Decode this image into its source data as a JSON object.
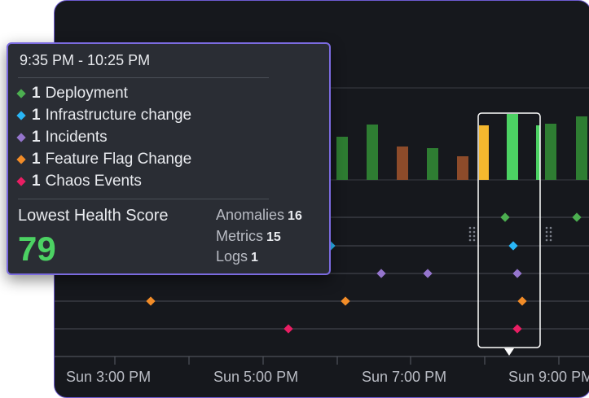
{
  "tooltip": {
    "time_range": "9:35 PM - 10:25 PM",
    "events": [
      {
        "count": "1",
        "label": "Deployment",
        "color": "#4caf50"
      },
      {
        "count": "1",
        "label": "Infrastructure change",
        "color": "#29b6f6"
      },
      {
        "count": "1",
        "label": "Incidents",
        "color": "#9575cd"
      },
      {
        "count": "1",
        "label": "Feature Flag Change",
        "color": "#f28c28"
      },
      {
        "count": "1",
        "label": "Chaos Events",
        "color": "#e91e63"
      }
    ],
    "health_label": "Lowest Health Score",
    "health_value": "79",
    "stats": [
      {
        "label": "Anomalies",
        "value": "16"
      },
      {
        "label": "Metrics",
        "value": "15"
      },
      {
        "label": "Logs",
        "value": "1"
      }
    ]
  },
  "axis": {
    "ticks": [
      "Sun 3:00 PM",
      "Sun 5:00 PM",
      "Sun 7:00 PM",
      "Sun 9:00 PM"
    ]
  },
  "colors": {
    "bar_green": "#2e7d32",
    "bar_brown": "#8d4b2a",
    "bar_yellow": "#f5b82e",
    "bar_bright_green": "#4cd263",
    "health_green": "#4cd263",
    "accent_purple": "#7b6be0"
  }
}
